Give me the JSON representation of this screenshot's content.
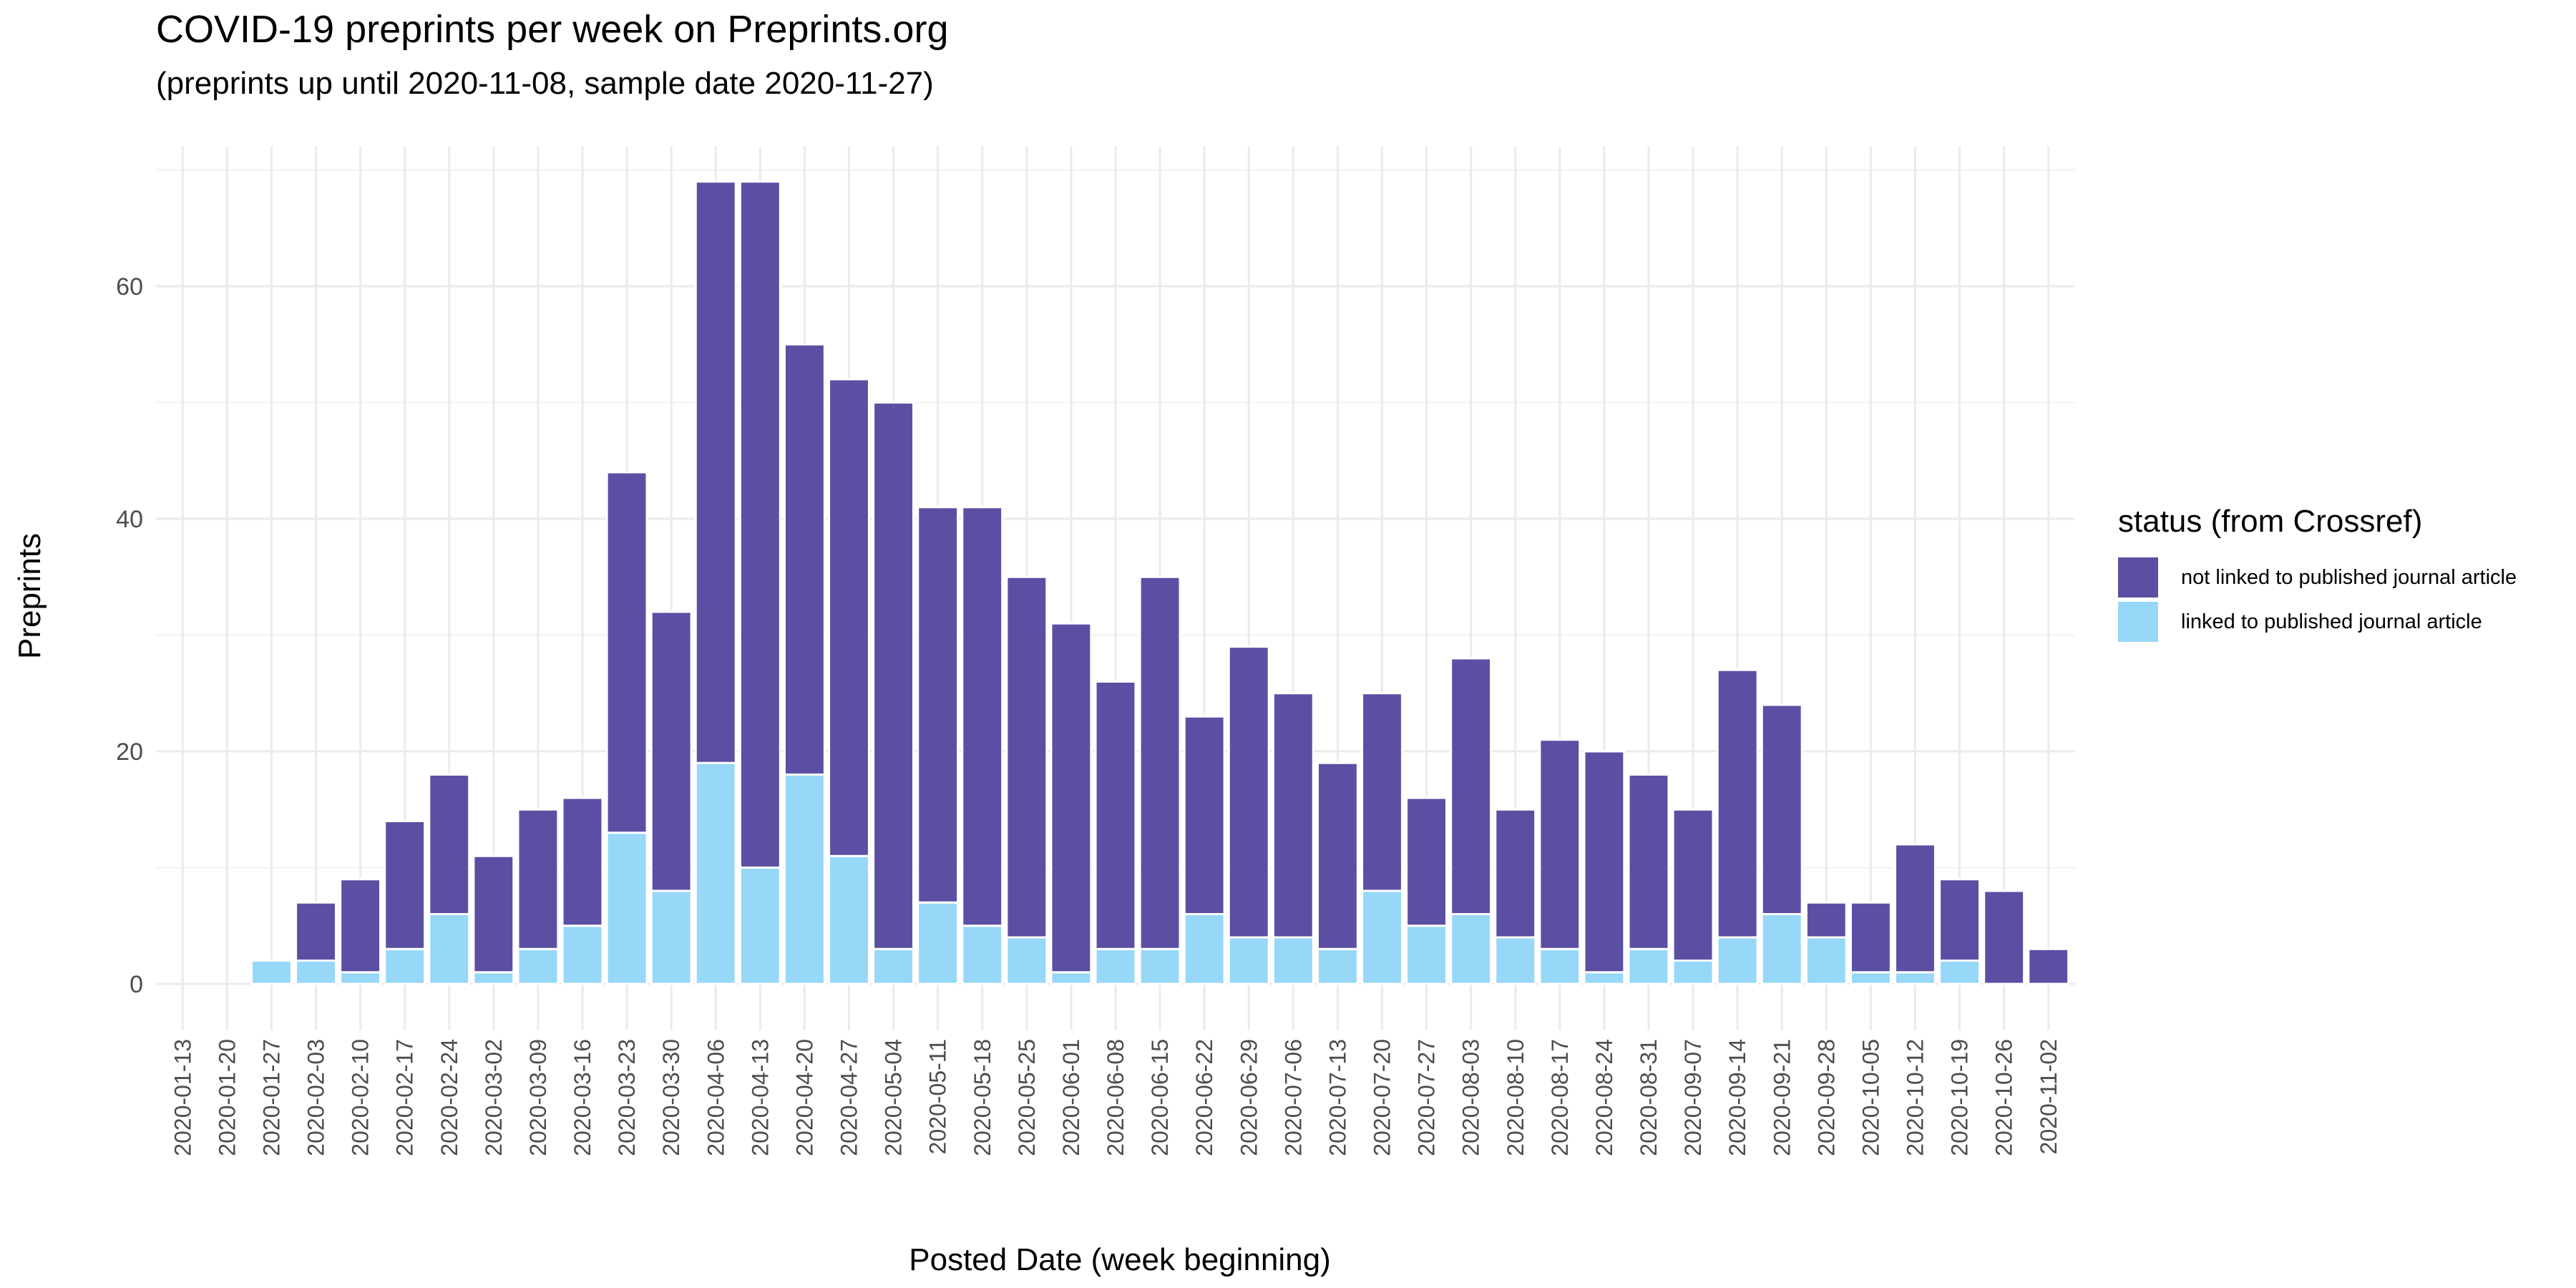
{
  "chart_data": {
    "type": "bar",
    "stacked": true,
    "title": "COVID-19 preprints per week on Preprints.org",
    "subtitle": "(preprints up until 2020-11-08, sample date 2020-11-27)",
    "xlabel": "Posted Date (week beginning)",
    "ylabel": "Preprints",
    "ylim": [
      -4,
      72
    ],
    "yticks": [
      0,
      20,
      40,
      60
    ],
    "grid": true,
    "legend": {
      "title": "status (from Crossref)",
      "placement": "right"
    },
    "categories": [
      "2020-01-13",
      "2020-01-20",
      "2020-01-27",
      "2020-02-03",
      "2020-02-10",
      "2020-02-17",
      "2020-02-24",
      "2020-03-02",
      "2020-03-09",
      "2020-03-16",
      "2020-03-23",
      "2020-03-30",
      "2020-04-06",
      "2020-04-13",
      "2020-04-20",
      "2020-04-27",
      "2020-05-04",
      "2020-05-11",
      "2020-05-18",
      "2020-05-25",
      "2020-06-01",
      "2020-06-08",
      "2020-06-15",
      "2020-06-22",
      "2020-06-29",
      "2020-07-06",
      "2020-07-13",
      "2020-07-20",
      "2020-07-27",
      "2020-08-03",
      "2020-08-10",
      "2020-08-17",
      "2020-08-24",
      "2020-08-31",
      "2020-09-07",
      "2020-09-14",
      "2020-09-21",
      "2020-09-28",
      "2020-10-05",
      "2020-10-12",
      "2020-10-19",
      "2020-10-26",
      "2020-11-02"
    ],
    "series": [
      {
        "name": "not linked to published journal article",
        "color": "#5b4fa3",
        "values": [
          0,
          0,
          0,
          5,
          8,
          11,
          12,
          10,
          12,
          11,
          31,
          24,
          50,
          59,
          37,
          41,
          47,
          34,
          36,
          31,
          30,
          23,
          32,
          17,
          25,
          21,
          16,
          17,
          11,
          22,
          11,
          18,
          19,
          15,
          13,
          23,
          18,
          3,
          6,
          11,
          7,
          8,
          3
        ]
      },
      {
        "name": "linked to published journal article",
        "color": "#97d7f8",
        "values": [
          0,
          0,
          2,
          2,
          1,
          3,
          6,
          1,
          3,
          5,
          13,
          8,
          19,
          10,
          18,
          11,
          3,
          7,
          5,
          4,
          1,
          3,
          3,
          6,
          4,
          4,
          3,
          8,
          5,
          6,
          4,
          3,
          1,
          3,
          2,
          4,
          6,
          4,
          1,
          1,
          2,
          0,
          0
        ]
      }
    ]
  }
}
